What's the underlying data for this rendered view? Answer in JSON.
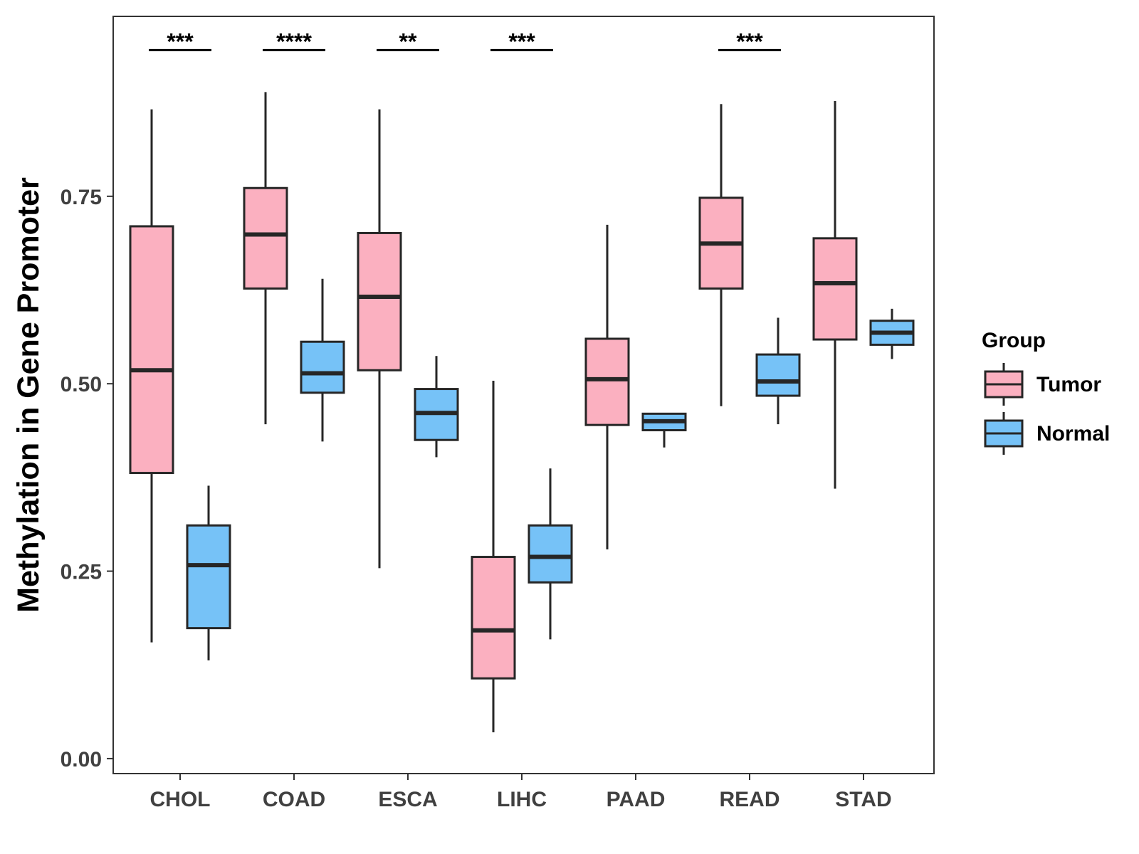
{
  "chart_data": {
    "type": "boxplot",
    "title": "",
    "xlabel": "",
    "ylabel": "Methylation in Gene Promoter",
    "ylim": [
      -0.02,
      0.99
    ],
    "yticks": [
      0.0,
      0.25,
      0.5,
      0.75
    ],
    "ytick_labels": [
      "0.00",
      "0.25",
      "0.50",
      "0.75"
    ],
    "categories": [
      "CHOL",
      "COAD",
      "ESCA",
      "LIHC",
      "PAAD",
      "READ",
      "STAD"
    ],
    "legend": {
      "title": "Group",
      "position": "right",
      "entries": [
        "Tumor",
        "Normal"
      ]
    },
    "series": [
      {
        "name": "Tumor",
        "color": "#FBB0C0",
        "boxes": [
          {
            "whisker_low": 0.155,
            "q1": 0.381,
            "median": 0.518,
            "q3": 0.71,
            "whisker_high": 0.866
          },
          {
            "whisker_low": 0.446,
            "q1": 0.627,
            "median": 0.699,
            "q3": 0.761,
            "whisker_high": 0.889
          },
          {
            "whisker_low": 0.254,
            "q1": 0.518,
            "median": 0.616,
            "q3": 0.701,
            "whisker_high": 0.866
          },
          {
            "whisker_low": 0.035,
            "q1": 0.107,
            "median": 0.171,
            "q3": 0.269,
            "whisker_high": 0.504
          },
          {
            "whisker_low": 0.279,
            "q1": 0.445,
            "median": 0.506,
            "q3": 0.56,
            "whisker_high": 0.712
          },
          {
            "whisker_low": 0.47,
            "q1": 0.627,
            "median": 0.687,
            "q3": 0.748,
            "whisker_high": 0.873
          },
          {
            "whisker_low": 0.36,
            "q1": 0.559,
            "median": 0.634,
            "q3": 0.694,
            "whisker_high": 0.877
          }
        ]
      },
      {
        "name": "Normal",
        "color": "#76C2F7",
        "boxes": [
          {
            "whisker_low": 0.131,
            "q1": 0.174,
            "median": 0.258,
            "q3": 0.311,
            "whisker_high": 0.364
          },
          {
            "whisker_low": 0.423,
            "q1": 0.488,
            "median": 0.514,
            "q3": 0.556,
            "whisker_high": 0.64
          },
          {
            "whisker_low": 0.402,
            "q1": 0.425,
            "median": 0.461,
            "q3": 0.493,
            "whisker_high": 0.537
          },
          {
            "whisker_low": 0.159,
            "q1": 0.235,
            "median": 0.269,
            "q3": 0.311,
            "whisker_high": 0.387
          },
          {
            "whisker_low": 0.415,
            "q1": 0.438,
            "median": 0.45,
            "q3": 0.46,
            "whisker_high": 0.46
          },
          {
            "whisker_low": 0.446,
            "q1": 0.484,
            "median": 0.503,
            "q3": 0.539,
            "whisker_high": 0.588
          },
          {
            "whisker_low": 0.533,
            "q1": 0.552,
            "median": 0.568,
            "q3": 0.584,
            "whisker_high": 0.6
          }
        ]
      }
    ],
    "significance": [
      {
        "category": "CHOL",
        "label": "***",
        "y": 0.945
      },
      {
        "category": "COAD",
        "label": "****",
        "y": 0.945
      },
      {
        "category": "ESCA",
        "label": "**",
        "y": 0.945
      },
      {
        "category": "LIHC",
        "label": "***",
        "y": 0.945
      },
      {
        "category": "READ",
        "label": "***",
        "y": 0.945
      }
    ]
  }
}
